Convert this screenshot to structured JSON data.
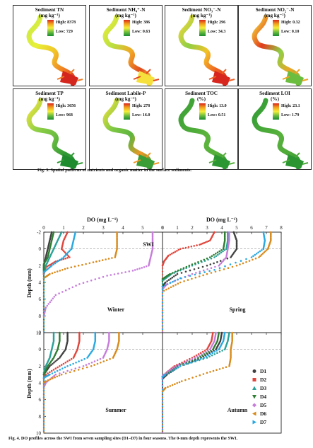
{
  "fig3": {
    "panels": [
      {
        "title": "Sediment TN",
        "unit": "(mg kg⁻¹)",
        "high": "High: 8378",
        "low": "Low: 729"
      },
      {
        "title": "Sediment NH₄⁺-N",
        "unit": "(mg kg⁻¹)",
        "high": "High: 386",
        "low": "Low: 0.63"
      },
      {
        "title": "Sediment NO₃⁻-N",
        "unit": "(mg kg⁻¹)",
        "high": "High: 296",
        "low": "Low: 34.3"
      },
      {
        "title": "Sediment NO₂⁻-N",
        "unit": "(mg kg⁻¹)",
        "high": "High: 0.32",
        "low": "Low: 0.10"
      },
      {
        "title": "Sediment TP",
        "unit": "(mg kg⁻¹)",
        "high": "High: 3656",
        "low": "Low: 968"
      },
      {
        "title": "Sediment Labile-P",
        "unit": "(mg kg⁻¹)",
        "high": "High: 278",
        "low": "Low: 16.0"
      },
      {
        "title": "Sediment TOC",
        "unit": "(%)",
        "high": "High: 13.0",
        "low": "Low: 0.51"
      },
      {
        "title": "Sediment LOI",
        "unit": "(%)",
        "high": "High: 23.1",
        "low": "Low: 1.79"
      }
    ],
    "caption": "Fig. 3.  Spatial patterns of nutrients and organic matter in the surface sediments."
  },
  "fig4": {
    "caption": "Fig. 4.  DO profiles across the SWI from seven sampling sites (D1–D7) in four seasons. The 0-mm depth represents the SWI.",
    "x_axis_label": "DO (mg L⁻¹)",
    "y_axis_label": "Depth (mm)",
    "swi_label": "SWI",
    "left_xticks": [
      "0",
      "1",
      "2",
      "3",
      "4",
      "5",
      "6"
    ],
    "right_xticks": [
      "0",
      "1",
      "2",
      "3",
      "4",
      "5",
      "6",
      "7",
      "8"
    ],
    "yticks": [
      "-2",
      "0",
      "2",
      "4",
      "6",
      "8",
      "10"
    ],
    "seasons": [
      "Winter",
      "Spring",
      "Summer",
      "Autumn"
    ],
    "legend": [
      "D1",
      "D2",
      "D3",
      "D4",
      "D5",
      "D6",
      "D7"
    ],
    "colors": [
      "#404040",
      "#e0463c",
      "#2aa198",
      "#2e7d32",
      "#c77ddb",
      "#d98a1a",
      "#29a8e0"
    ]
  },
  "chart_data": [
    {
      "type": "line",
      "title": "Winter",
      "xlabel": "DO (mg L⁻¹)",
      "ylabel": "Depth (mm)",
      "xlim": [
        0,
        6
      ],
      "ylim": [
        10,
        -2
      ],
      "series": [
        {
          "name": "D1",
          "points": [
            [
              0.4,
              -2
            ],
            [
              0.3,
              -1
            ],
            [
              0.2,
              0
            ],
            [
              0.1,
              1
            ],
            [
              0,
              2
            ],
            [
              0,
              3
            ]
          ]
        },
        {
          "name": "D2",
          "points": [
            [
              1.2,
              -2
            ],
            [
              1.0,
              -1
            ],
            [
              0.9,
              0
            ],
            [
              1.3,
              1
            ],
            [
              0.6,
              1.5
            ],
            [
              0.1,
              2.2
            ],
            [
              0,
              3
            ]
          ]
        },
        {
          "name": "D3",
          "points": [
            [
              0.9,
              -2
            ],
            [
              0.7,
              -1
            ],
            [
              0.5,
              0
            ],
            [
              0.3,
              1
            ],
            [
              0.1,
              2
            ],
            [
              0,
              2.6
            ]
          ]
        },
        {
          "name": "D4",
          "points": [
            [
              0.5,
              -2
            ],
            [
              0.4,
              -1
            ],
            [
              0.3,
              0
            ],
            [
              0.2,
              1
            ],
            [
              0,
              1.8
            ],
            [
              0,
              2.5
            ]
          ]
        },
        {
          "name": "D5",
          "points": [
            [
              5.5,
              -2
            ],
            [
              5.5,
              -1
            ],
            [
              5.5,
              0
            ],
            [
              5.4,
              1
            ],
            [
              5.3,
              2
            ],
            [
              4.5,
              2.6
            ],
            [
              3.2,
              3.2
            ],
            [
              1.8,
              4.2
            ],
            [
              0.6,
              5.5
            ],
            [
              0.1,
              7
            ],
            [
              0,
              8
            ]
          ]
        },
        {
          "name": "D6",
          "points": [
            [
              3.7,
              -2
            ],
            [
              3.7,
              -1
            ],
            [
              3.7,
              0
            ],
            [
              3.6,
              1
            ],
            [
              2.5,
              1.6
            ],
            [
              1.2,
              2.3
            ],
            [
              0.3,
              3.0
            ],
            [
              0,
              3.5
            ]
          ]
        },
        {
          "name": "D7",
          "points": [
            [
              1.6,
              -2
            ],
            [
              1.5,
              -1
            ],
            [
              1.4,
              0
            ],
            [
              1.0,
              1
            ],
            [
              0.4,
              2
            ],
            [
              0,
              2.8
            ]
          ]
        }
      ]
    },
    {
      "type": "line",
      "title": "Spring",
      "xlabel": "DO (mg L⁻¹)",
      "ylabel": "Depth (mm)",
      "xlim": [
        0,
        8
      ],
      "ylim": [
        10,
        -2
      ],
      "series": [
        {
          "name": "D1",
          "points": [
            [
              4.8,
              -2
            ],
            [
              5.0,
              -1
            ],
            [
              5.0,
              0
            ],
            [
              4.6,
              1
            ],
            [
              3.0,
              2
            ],
            [
              1.0,
              3
            ],
            [
              0.2,
              4
            ],
            [
              0,
              4.5
            ]
          ]
        },
        {
          "name": "D2",
          "points": [
            [
              3.5,
              -2
            ],
            [
              3.2,
              -1
            ],
            [
              2.5,
              -0.5
            ],
            [
              1.2,
              0
            ],
            [
              0.4,
              0.8
            ],
            [
              0.1,
              1.5
            ],
            [
              0,
              2
            ]
          ]
        },
        {
          "name": "D3",
          "points": [
            [
              4.4,
              -2
            ],
            [
              4.4,
              -1
            ],
            [
              4.3,
              0
            ],
            [
              3.5,
              1
            ],
            [
              2.0,
              2
            ],
            [
              0.6,
              3
            ],
            [
              0,
              3.8
            ]
          ]
        },
        {
          "name": "D4",
          "points": [
            [
              4.2,
              -2
            ],
            [
              4.2,
              -1
            ],
            [
              4.1,
              0
            ],
            [
              3.2,
              1
            ],
            [
              1.8,
              2
            ],
            [
              0.5,
              3
            ],
            [
              0,
              3.6
            ]
          ]
        },
        {
          "name": "D5",
          "points": [
            [
              4.5,
              -2
            ],
            [
              4.5,
              -1
            ],
            [
              4.4,
              0
            ],
            [
              4.3,
              1
            ],
            [
              3.8,
              2
            ],
            [
              2.0,
              3
            ],
            [
              0.3,
              4.2
            ],
            [
              0,
              4.8
            ]
          ]
        },
        {
          "name": "D6",
          "points": [
            [
              7.3,
              -2
            ],
            [
              7.3,
              -1
            ],
            [
              7.1,
              0
            ],
            [
              6.5,
              1
            ],
            [
              5.0,
              2
            ],
            [
              3.0,
              3
            ],
            [
              1.2,
              4
            ],
            [
              0.1,
              5
            ]
          ]
        },
        {
          "name": "D7",
          "points": [
            [
              6.8,
              -2
            ],
            [
              6.9,
              -1
            ],
            [
              6.8,
              0
            ],
            [
              6.0,
              1
            ],
            [
              3.5,
              2.5
            ],
            [
              1.2,
              3.5
            ],
            [
              0,
              4.5
            ]
          ]
        }
      ]
    },
    {
      "type": "line",
      "title": "Summer",
      "xlabel": "DO (mg L⁻¹)",
      "ylabel": "Depth (mm)",
      "xlim": [
        0,
        6
      ],
      "ylim": [
        10,
        -2
      ],
      "series": [
        {
          "name": "D1",
          "points": [
            [
              1.2,
              -2
            ],
            [
              1.2,
              -1
            ],
            [
              1.1,
              0
            ],
            [
              0.8,
              1
            ],
            [
              0.3,
              2
            ],
            [
              0,
              3
            ]
          ]
        },
        {
          "name": "D2",
          "points": [
            [
              1.8,
              -2
            ],
            [
              1.8,
              -1
            ],
            [
              1.7,
              0
            ],
            [
              1.5,
              1
            ],
            [
              0.8,
              2
            ],
            [
              0.1,
              3
            ],
            [
              0,
              3.5
            ]
          ]
        },
        {
          "name": "D3",
          "points": [
            [
              0.5,
              -2
            ],
            [
              0.5,
              -1
            ],
            [
              0.4,
              0
            ],
            [
              0.3,
              1
            ],
            [
              0.1,
              2
            ],
            [
              0,
              2.8
            ]
          ]
        },
        {
          "name": "D4",
          "points": [
            [
              0.8,
              -2
            ],
            [
              0.8,
              -1
            ],
            [
              0.7,
              0
            ],
            [
              0.5,
              1
            ],
            [
              0.2,
              2
            ],
            [
              0,
              3
            ]
          ]
        },
        {
          "name": "D5",
          "points": [
            [
              3.3,
              -2
            ],
            [
              3.3,
              -1
            ],
            [
              3.2,
              0
            ],
            [
              3.0,
              1
            ],
            [
              2.0,
              2
            ],
            [
              0.6,
              3
            ],
            [
              0.1,
              4
            ],
            [
              0,
              4.5
            ]
          ]
        },
        {
          "name": "D6",
          "points": [
            [
              3.8,
              -2
            ],
            [
              3.8,
              -1
            ],
            [
              3.7,
              0
            ],
            [
              3.5,
              1
            ],
            [
              2.4,
              2
            ],
            [
              0.9,
              3
            ],
            [
              0.1,
              3.8
            ],
            [
              0,
              4
            ]
          ]
        },
        {
          "name": "D7",
          "points": [
            [
              2.6,
              -2
            ],
            [
              2.6,
              -1
            ],
            [
              2.5,
              0
            ],
            [
              2.2,
              1
            ],
            [
              1.2,
              2
            ],
            [
              0.3,
              3
            ],
            [
              0,
              3.4
            ]
          ]
        }
      ]
    },
    {
      "type": "line",
      "title": "Autumn",
      "xlabel": "DO (mg L⁻¹)",
      "ylabel": "Depth (mm)",
      "xlim": [
        0,
        8
      ],
      "ylim": [
        10,
        -2
      ],
      "series": [
        {
          "name": "D1",
          "points": [
            [
              4.0,
              -2
            ],
            [
              3.9,
              -1
            ],
            [
              3.6,
              0
            ],
            [
              2.6,
              1
            ],
            [
              1.2,
              2
            ],
            [
              0.3,
              3
            ],
            [
              0,
              3.5
            ]
          ]
        },
        {
          "name": "D2",
          "points": [
            [
              3.4,
              -2
            ],
            [
              3.3,
              -1
            ],
            [
              3.0,
              0
            ],
            [
              2.0,
              1
            ],
            [
              0.8,
              2
            ],
            [
              0.1,
              3
            ],
            [
              0,
              3.3
            ]
          ]
        },
        {
          "name": "D3",
          "points": [
            [
              4.5,
              -2
            ],
            [
              4.4,
              -1
            ],
            [
              4.2,
              0
            ],
            [
              3.0,
              1
            ],
            [
              1.2,
              2
            ],
            [
              0.2,
              3
            ],
            [
              0,
              3.3
            ]
          ]
        },
        {
          "name": "D4",
          "points": [
            [
              3.8,
              -2
            ],
            [
              3.7,
              -1
            ],
            [
              3.4,
              0
            ],
            [
              2.4,
              1
            ],
            [
              1.0,
              2
            ],
            [
              0.2,
              3
            ],
            [
              0,
              3.2
            ]
          ]
        },
        {
          "name": "D5",
          "points": [
            [
              3.6,
              -2
            ],
            [
              3.5,
              -1
            ],
            [
              3.2,
              0
            ],
            [
              2.2,
              1
            ],
            [
              0.9,
              2
            ],
            [
              0.1,
              3
            ],
            [
              0,
              3.2
            ]
          ]
        },
        {
          "name": "D6",
          "points": [
            [
              4.7,
              -2
            ],
            [
              4.7,
              -1
            ],
            [
              4.6,
              0
            ],
            [
              4.6,
              1
            ],
            [
              4.5,
              2
            ],
            [
              3.0,
              2.8
            ],
            [
              1.3,
              3.8
            ],
            [
              0.2,
              4.6
            ],
            [
              0,
              5
            ]
          ]
        },
        {
          "name": "D7",
          "points": [
            [
              4.2,
              -2
            ],
            [
              4.1,
              -1
            ],
            [
              3.8,
              0
            ],
            [
              2.8,
              1
            ],
            [
              1.2,
              2
            ],
            [
              0.2,
              3
            ],
            [
              0,
              3.3
            ]
          ]
        }
      ]
    }
  ]
}
